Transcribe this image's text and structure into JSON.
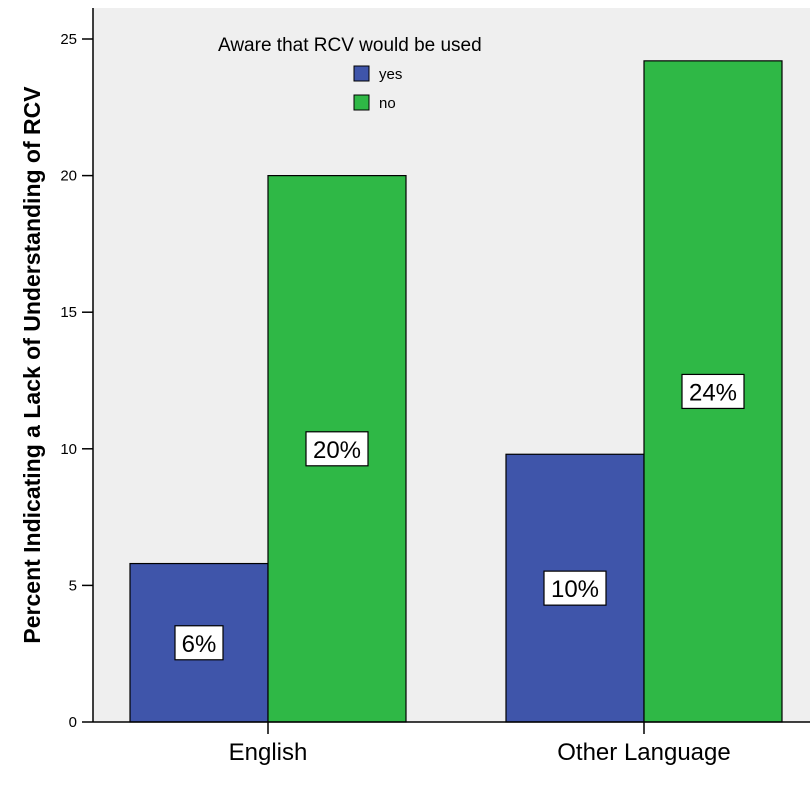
{
  "chart_data": {
    "type": "bar",
    "categories": [
      "English",
      "Other Language"
    ],
    "series": [
      {
        "name": "yes",
        "values": [
          5.8,
          9.8
        ],
        "labels": [
          "6%",
          "10%"
        ]
      },
      {
        "name": "no",
        "values": [
          20.0,
          24.2
        ],
        "labels": [
          "20%",
          "24%"
        ]
      }
    ],
    "title": "",
    "xlabel": "",
    "ylabel": "Percent Indicating a Lack of Understanding of RCV",
    "ylim": [
      0,
      26
    ],
    "yticks": [
      0,
      5,
      10,
      15,
      20,
      25
    ],
    "legend": {
      "title": "Aware that RCV would be used",
      "placement": "top-left"
    },
    "grid": false
  },
  "colors": {
    "yes": "#3f55aa",
    "no": "#2fb846",
    "plot_background": "#efefef"
  }
}
